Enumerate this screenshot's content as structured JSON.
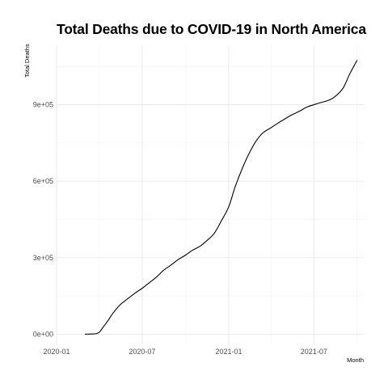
{
  "chart_data": {
    "type": "line",
    "title": "Total Deaths due to COVID-19 in North America",
    "xlabel": "Month",
    "ylabel": "Total Deaths",
    "x_ticks": [
      "2020-01",
      "2020-07",
      "2021-01",
      "2021-07"
    ],
    "y_ticks": [
      "0e+00",
      "3e+05",
      "6e+05",
      "9e+05"
    ],
    "xlim": [
      "2020-01-01",
      "2021-10-15"
    ],
    "ylim": [
      -40000,
      1130000
    ],
    "grid": true,
    "line_color": "#000000",
    "series": [
      {
        "x": [
          "2020-03-01",
          "2020-03-15",
          "2020-03-25",
          "2020-04-01",
          "2020-04-10",
          "2020-04-20",
          "2020-05-01",
          "2020-05-15",
          "2020-06-01",
          "2020-06-15",
          "2020-07-01",
          "2020-07-15",
          "2020-08-01",
          "2020-08-15",
          "2020-09-01",
          "2020-09-15",
          "2020-10-01",
          "2020-10-15",
          "2020-11-01",
          "2020-11-15",
          "2020-12-01",
          "2020-12-15",
          "2021-01-01",
          "2021-01-15",
          "2021-02-01",
          "2021-02-15",
          "2021-03-01",
          "2021-03-15",
          "2021-04-01",
          "2021-04-15",
          "2021-05-01",
          "2021-05-15",
          "2021-06-01",
          "2021-06-15",
          "2021-07-01",
          "2021-07-15",
          "2021-08-01",
          "2021-08-15",
          "2021-09-01",
          "2021-09-15",
          "2021-10-01"
        ],
        "y": [
          0,
          500,
          2000,
          8000,
          30000,
          55000,
          85000,
          115000,
          140000,
          160000,
          180000,
          200000,
          225000,
          250000,
          272000,
          292000,
          310000,
          328000,
          345000,
          366000,
          395000,
          440000,
          500000,
          580000,
          660000,
          715000,
          760000,
          790000,
          810000,
          827000,
          845000,
          860000,
          875000,
          890000,
          900000,
          908000,
          917000,
          932000,
          965000,
          1020000,
          1075000
        ]
      }
    ]
  }
}
